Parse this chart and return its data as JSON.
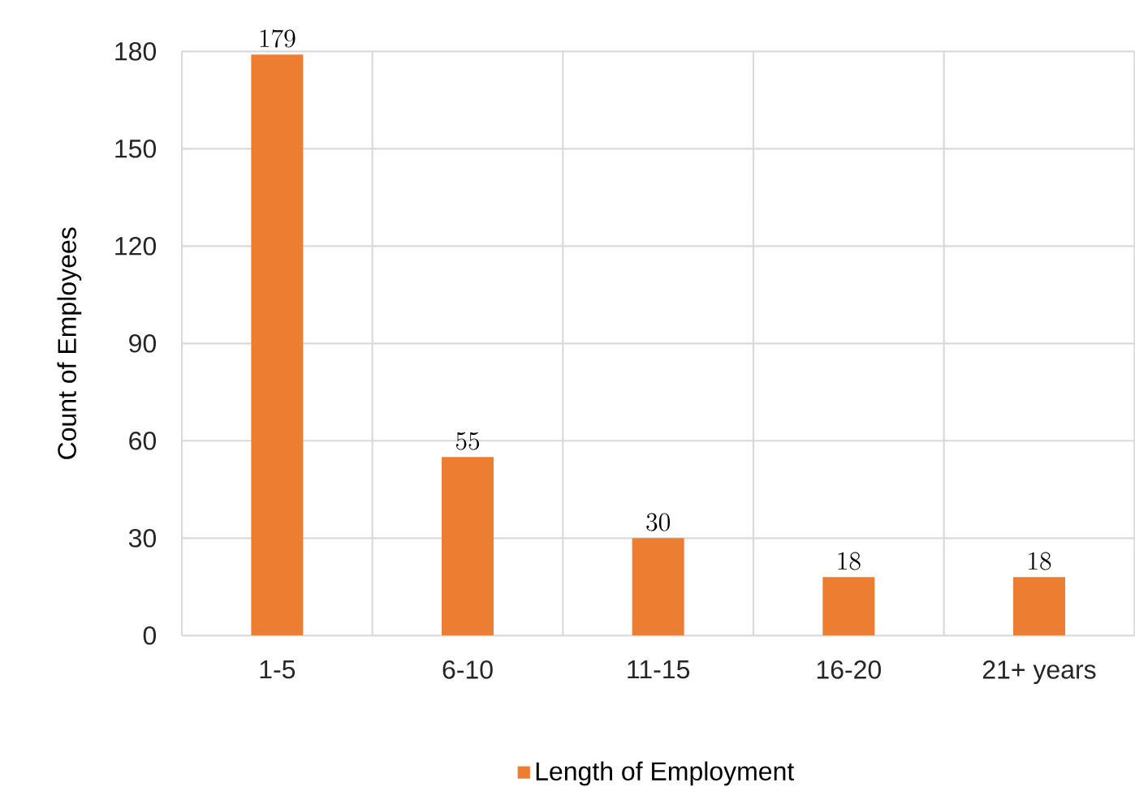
{
  "chart_data": {
    "type": "bar",
    "categories": [
      "1-5",
      "6-10",
      "11-15",
      "16-20",
      "21+ years"
    ],
    "series": [
      {
        "name": "Length of Employment",
        "color": "#ed7d31",
        "values": [
          179,
          55,
          30,
          18,
          18
        ]
      }
    ],
    "ylabel": "Count of Employees",
    "ylim": [
      0,
      180
    ],
    "yticks": [
      0,
      30,
      60,
      90,
      120,
      150,
      180
    ],
    "grid": true,
    "legend": "bottom",
    "data_labels": true
  }
}
